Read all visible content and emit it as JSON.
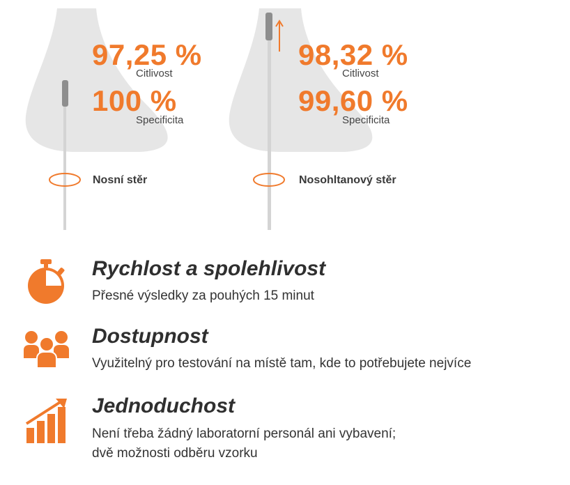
{
  "colors": {
    "accent": "#f07a2c",
    "silhouette": "#e6e6e6",
    "swab": "#d4d4d4",
    "swab_tip": "#8e8e8e"
  },
  "nasal": {
    "sensitivity_value": "97,25 %",
    "sensitivity_label": "Citlivost",
    "specificity_value": "100 %",
    "specificity_label": "Specificita",
    "swab_label": "Nosní stěr"
  },
  "nasopharyngeal": {
    "sensitivity_value": "98,32 %",
    "sensitivity_label": "Citlivost",
    "specificity_value": "99,60 %",
    "specificity_label": "Specificita",
    "swab_label": "Nosohltanový stěr"
  },
  "features": [
    {
      "icon": "stopwatch-icon",
      "title": "Rychlost a spolehlivost",
      "desc": "Přesné výsledky za pouhých 15 minut"
    },
    {
      "icon": "people-group-icon",
      "title": "Dostupnost",
      "desc": "Využitelný pro testování na místě tam, kde to potřebujete nejvíce"
    },
    {
      "icon": "growth-chart-icon",
      "title": "Jednoduchost",
      "desc_line1": "Není třeba žádný laboratorní personál ani vybavení;",
      "desc_line2": "dvě možnosti odběru vzorku"
    }
  ]
}
